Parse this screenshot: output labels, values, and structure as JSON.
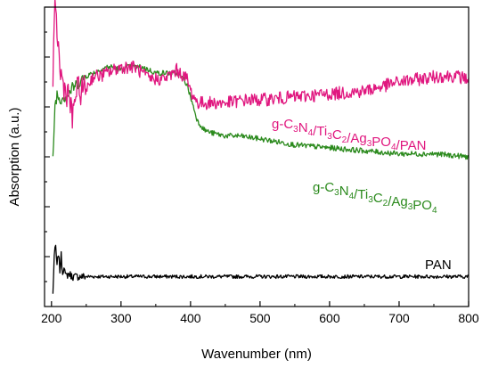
{
  "chart_data": {
    "type": "line",
    "xlabel": "Wavenumber (nm)",
    "ylabel": "Absorption (a.u.)",
    "xlim": [
      190,
      800
    ],
    "ylim": [
      0,
      1
    ],
    "x_ticks": [
      200,
      300,
      400,
      500,
      600,
      700,
      800
    ],
    "y_tick_labels_shown": false,
    "grid": false,
    "legend": "inline labels next to each curve",
    "series": [
      {
        "name": "g-C3N4/Ti3C2/Ag3PO4/PAN",
        "label_parts": [
          [
            "g-C",
            ""
          ],
          [
            "3",
            "sub"
          ],
          [
            "N",
            ""
          ],
          [
            "4",
            "sub"
          ],
          [
            "/Ti",
            ""
          ],
          [
            "3",
            "sub"
          ],
          [
            "C",
            ""
          ],
          [
            "2",
            "sub"
          ],
          [
            "/Ag",
            ""
          ],
          [
            "3",
            "sub"
          ],
          [
            "PO",
            ""
          ],
          [
            "4",
            "sub"
          ],
          [
            "/PAN",
            ""
          ]
        ],
        "label_position": "right of curve near x=500-720",
        "color": "#e0177f",
        "noise": "high",
        "x": [
          202,
          205,
          208,
          212,
          216,
          220,
          225,
          230,
          235,
          240,
          250,
          260,
          270,
          280,
          290,
          300,
          310,
          320,
          330,
          340,
          350,
          360,
          370,
          380,
          390,
          395,
          400,
          405,
          410,
          420,
          430,
          450,
          480,
          500,
          550,
          600,
          650,
          700,
          730,
          760,
          780,
          800
        ],
        "y": [
          0.76,
          0.98,
          0.93,
          0.79,
          0.75,
          0.72,
          0.71,
          0.62,
          0.72,
          0.72,
          0.73,
          0.77,
          0.77,
          0.78,
          0.79,
          0.8,
          0.8,
          0.8,
          0.78,
          0.76,
          0.76,
          0.76,
          0.77,
          0.79,
          0.77,
          0.76,
          0.72,
          0.7,
          0.68,
          0.68,
          0.68,
          0.68,
          0.69,
          0.69,
          0.7,
          0.71,
          0.72,
          0.75,
          0.76,
          0.77,
          0.77,
          0.76
        ]
      },
      {
        "name": "g-C3N4/Ti3C2/Ag3PO4",
        "label_parts": [
          [
            "g-C",
            ""
          ],
          [
            "3",
            "sub"
          ],
          [
            "N",
            ""
          ],
          [
            "4",
            "sub"
          ],
          [
            "/Ti",
            ""
          ],
          [
            "3",
            "sub"
          ],
          [
            "C",
            ""
          ],
          [
            "2",
            "sub"
          ],
          [
            "/Ag",
            ""
          ],
          [
            "3",
            "sub"
          ],
          [
            "PO",
            ""
          ],
          [
            "4",
            "sub"
          ]
        ],
        "label_position": "below curve near x=560-720",
        "color": "#2b8a1d",
        "noise": "medium",
        "x": [
          202,
          205,
          208,
          212,
          216,
          220,
          225,
          230,
          240,
          250,
          260,
          270,
          280,
          290,
          300,
          310,
          320,
          330,
          340,
          350,
          360,
          370,
          380,
          390,
          395,
          400,
          405,
          410,
          420,
          430,
          450,
          470,
          500,
          550,
          600,
          650,
          700,
          750,
          800
        ],
        "y": [
          0.49,
          0.67,
          0.71,
          0.69,
          0.7,
          0.7,
          0.71,
          0.73,
          0.75,
          0.77,
          0.78,
          0.79,
          0.8,
          0.8,
          0.79,
          0.8,
          0.8,
          0.8,
          0.79,
          0.78,
          0.78,
          0.78,
          0.78,
          0.76,
          0.74,
          0.7,
          0.66,
          0.62,
          0.59,
          0.58,
          0.57,
          0.57,
          0.56,
          0.54,
          0.53,
          0.52,
          0.51,
          0.51,
          0.5
        ]
      },
      {
        "name": "PAN",
        "label_parts": [
          [
            "PAN",
            ""
          ]
        ],
        "label_position": "above curve near x=760",
        "color": "#000000",
        "noise": "low",
        "x": [
          202,
          204,
          206,
          208,
          210,
          212,
          214,
          216,
          218,
          220,
          225,
          230,
          240,
          250,
          260,
          280,
          300,
          350,
          400,
          500,
          600,
          700,
          800
        ],
        "y": [
          0.04,
          0.17,
          0.2,
          0.13,
          0.18,
          0.12,
          0.17,
          0.11,
          0.14,
          0.1,
          0.11,
          0.1,
          0.1,
          0.1,
          0.1,
          0.1,
          0.1,
          0.1,
          0.1,
          0.1,
          0.1,
          0.1,
          0.1
        ]
      }
    ]
  }
}
